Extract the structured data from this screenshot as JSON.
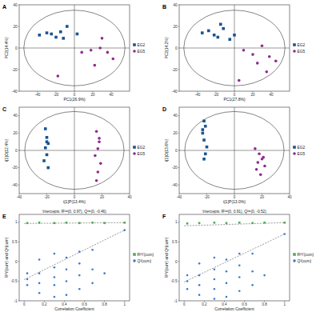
{
  "chart_data": [
    {
      "type": "scatter",
      "panel": "A",
      "x_label": "PC1(26.9%)",
      "y_label": "PC2(14.4%)",
      "xlim": [
        -60,
        60
      ],
      "ylim": [
        -40,
        40
      ],
      "xticks": [
        -40,
        -20,
        0,
        20,
        40
      ],
      "yticks": [
        -40,
        -20,
        0,
        20,
        40
      ],
      "legend": "right",
      "ellipse_radii": [
        55,
        35
      ],
      "series": [
        {
          "name": "EG2",
          "color": "#1a5490",
          "marker": "square",
          "x": [
            -38,
            -30,
            -25,
            -20,
            -15,
            -8,
            -12,
            3
          ],
          "values": [
            12,
            14,
            13,
            10,
            15,
            20,
            9,
            13
          ]
        },
        {
          "name": "EG5",
          "color": "#8e2a8e",
          "marker": "circle",
          "x": [
            8,
            18,
            28,
            36,
            42,
            22,
            -18,
            30
          ],
          "values": [
            -4,
            -2,
            0,
            -4,
            -10,
            -16,
            -26,
            9
          ]
        }
      ]
    },
    {
      "type": "scatter",
      "panel": "B",
      "x_label": "PC1(27.8%)",
      "y_label": "PC2(14.2%)",
      "xlim": [
        -60,
        60
      ],
      "ylim": [
        -40,
        40
      ],
      "xticks": [
        -40,
        -20,
        0,
        20,
        40
      ],
      "yticks": [
        -40,
        -20,
        0,
        20,
        40
      ],
      "legend": "right",
      "ellipse_radii": [
        55,
        35
      ],
      "series": [
        {
          "name": "EG2",
          "color": "#1a5490",
          "marker": "square",
          "x": [
            -35,
            -28,
            -22,
            -18,
            -12,
            -5,
            -15,
            0
          ],
          "values": [
            14,
            16,
            12,
            10,
            18,
            8,
            22,
            12
          ]
        },
        {
          "name": "EG5",
          "color": "#8e2a8e",
          "marker": "circle",
          "x": [
            10,
            20,
            30,
            38,
            25,
            45,
            35,
            5
          ],
          "values": [
            -2,
            -6,
            2,
            -8,
            -14,
            -12,
            -22,
            -30
          ]
        }
      ]
    },
    {
      "type": "scatter",
      "panel": "C",
      "x_label": "t[1]P(13.4%)",
      "y_label": "t[1]O(12.4%)",
      "xlim": [
        -40,
        40
      ],
      "ylim": [
        -50,
        50
      ],
      "xticks": [
        -40,
        -20,
        0,
        20,
        40
      ],
      "yticks": [
        -40,
        -20,
        0,
        20,
        40
      ],
      "legend": "right",
      "ellipse_radii": [
        36,
        45
      ],
      "series": [
        {
          "name": "EG2",
          "color": "#1a5490",
          "marker": "square",
          "x": [
            -21,
            -20,
            -19,
            -21,
            -20,
            -22,
            -19,
            -20
          ],
          "values": [
            25,
            15,
            8,
            3,
            -5,
            -12,
            -20,
            10
          ]
        },
        {
          "name": "EG5",
          "color": "#8e2a8e",
          "marker": "circle",
          "x": [
            16,
            18,
            17,
            15,
            19,
            17,
            16,
            18
          ],
          "values": [
            22,
            10,
            2,
            -6,
            -15,
            -25,
            -35,
            14
          ]
        }
      ]
    },
    {
      "type": "scatter",
      "panel": "D",
      "x_label": "t[1]P(13.0%)",
      "y_label": "t[1]O(13.6%)",
      "xlim": [
        -40,
        40
      ],
      "ylim": [
        -50,
        50
      ],
      "xticks": [
        -40,
        -20,
        0,
        20,
        40
      ],
      "yticks": [
        -40,
        -20,
        0,
        20,
        40
      ],
      "legend": "right",
      "ellipse_radii": [
        36,
        45
      ],
      "series": [
        {
          "name": "EG2",
          "color": "#1a5490",
          "marker": "square",
          "x": [
            -22,
            -21,
            -23,
            -22,
            -20,
            -21,
            -22,
            -23
          ],
          "values": [
            34,
            28,
            20,
            12,
            4,
            -4,
            -10,
            24
          ]
        },
        {
          "name": "EG5",
          "color": "#8e2a8e",
          "marker": "circle",
          "x": [
            15,
            18,
            20,
            17,
            22,
            16,
            19,
            21
          ],
          "values": [
            2,
            -4,
            -10,
            -14,
            -18,
            -22,
            -28,
            -8
          ]
        }
      ]
    },
    {
      "type": "scatter",
      "panel": "E",
      "title": "Intercepts: R²=(0, 0.97), Q²=(0, -0.46)",
      "x_label": "Correlation Coefficient",
      "y_label": "R²Y(cum) and Q²(cum)",
      "xlim": [
        -0.05,
        1.05
      ],
      "ylim": [
        -1,
        1.2
      ],
      "xticks": [
        0,
        0.2,
        0.4,
        0.6,
        0.8,
        1
      ],
      "yticks": [
        -1,
        -0.5,
        0,
        0.5,
        1
      ],
      "legend": "right",
      "series": [
        {
          "name": "R²Y(cum)",
          "color": "#4caf50",
          "marker": "square",
          "intercept": 0.97,
          "x": [
            0.03,
            0.15,
            0.3,
            0.42,
            0.55,
            0.68,
            0.8,
            1.0
          ],
          "values": [
            0.98,
            0.99,
            0.98,
            0.99,
            0.98,
            0.99,
            0.98,
            0.99
          ]
        },
        {
          "name": "Q²(cum)",
          "color": "#3d7cc9",
          "marker": "circle",
          "intercept": -0.46,
          "x": [
            0.03,
            0.03,
            0.03,
            0.15,
            0.15,
            0.15,
            0.15,
            0.3,
            0.3,
            0.3,
            0.3,
            0.3,
            0.42,
            0.42,
            0.42,
            0.42,
            0.55,
            0.55,
            0.55,
            0.55,
            0.68,
            0.68,
            0.68,
            0.8,
            1.0
          ],
          "values": [
            -0.6,
            -0.45,
            -0.3,
            -0.8,
            -0.55,
            -0.3,
            0.05,
            -0.9,
            -0.6,
            -0.4,
            -0.15,
            0.2,
            -0.85,
            -0.5,
            -0.2,
            0.1,
            -0.7,
            -0.35,
            -0.05,
            0.25,
            -0.55,
            -0.2,
            0.3,
            -0.3,
            0.8
          ]
        }
      ]
    },
    {
      "type": "scatter",
      "panel": "F",
      "title": "Intercepts: R²=(0, 0.91), Q²=(0, -0.52)",
      "x_label": "Correlation Coefficient",
      "y_label": "R²Y(cum) and Q²(cum)",
      "xlim": [
        -0.05,
        1.05
      ],
      "ylim": [
        -1,
        1.2
      ],
      "xticks": [
        0,
        0.2,
        0.4,
        0.6,
        0.8,
        1
      ],
      "yticks": [
        -1,
        -0.5,
        0,
        0.5,
        1
      ],
      "legend": "right",
      "series": [
        {
          "name": "R²Y(cum)",
          "color": "#4caf50",
          "marker": "square",
          "intercept": 0.91,
          "x": [
            0.03,
            0.15,
            0.3,
            0.42,
            0.55,
            0.68,
            0.8,
            1.0
          ],
          "values": [
            0.97,
            0.98,
            0.99,
            0.98,
            0.99,
            0.98,
            0.99,
            0.99
          ]
        },
        {
          "name": "Q²(cum)",
          "color": "#3d7cc9",
          "marker": "circle",
          "intercept": -0.52,
          "x": [
            0.03,
            0.03,
            0.03,
            0.15,
            0.15,
            0.15,
            0.15,
            0.3,
            0.3,
            0.3,
            0.3,
            0.3,
            0.42,
            0.42,
            0.42,
            0.42,
            0.55,
            0.55,
            0.55,
            0.55,
            0.68,
            0.68,
            0.68,
            0.8,
            1.0
          ],
          "values": [
            -0.7,
            -0.5,
            -0.35,
            -0.85,
            -0.6,
            -0.35,
            -0.05,
            -0.95,
            -0.7,
            -0.45,
            -0.2,
            0.1,
            -0.9,
            -0.55,
            -0.25,
            0.05,
            -0.75,
            -0.4,
            -0.1,
            0.2,
            -0.6,
            -0.25,
            0.2,
            -0.35,
            0.7
          ]
        }
      ]
    }
  ]
}
